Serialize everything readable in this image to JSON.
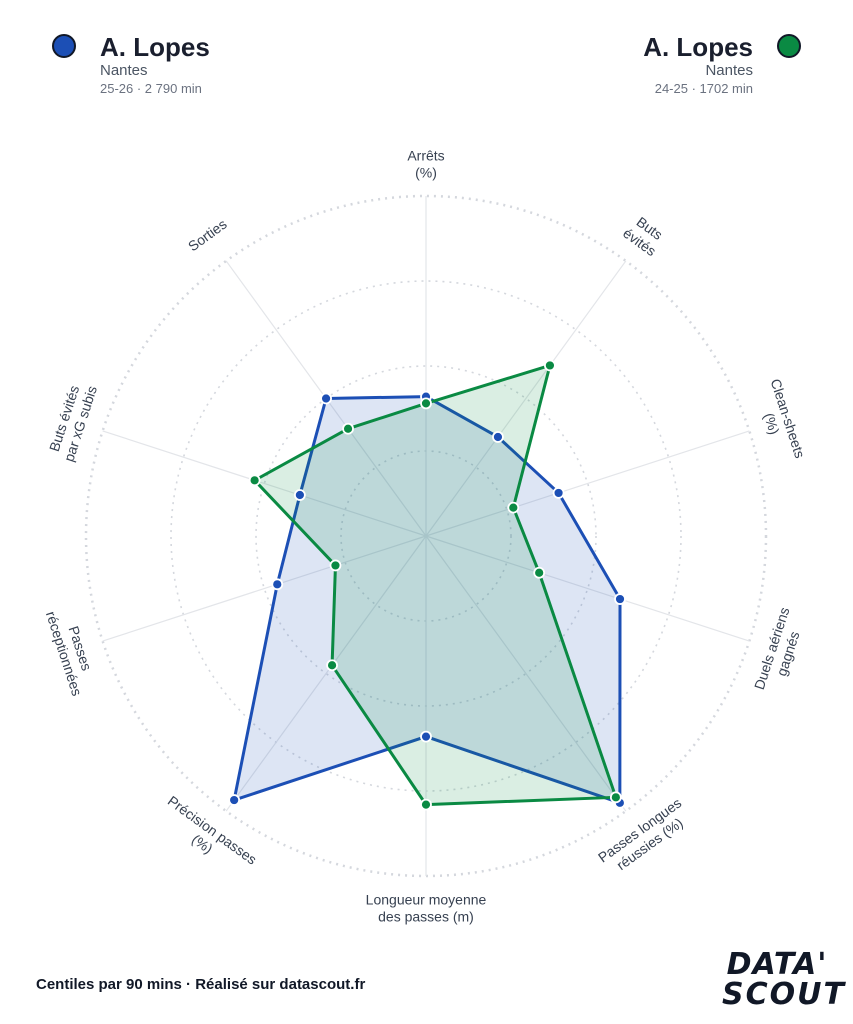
{
  "players": [
    {
      "name": "A. Lopes",
      "club": "Nantes",
      "season_minutes": "25-26 · 2 790 min",
      "color": "#1c4fb5"
    },
    {
      "name": "A. Lopes",
      "club": "Nantes",
      "season_minutes": "24-25 · 1702 min",
      "color": "#0a8a43"
    }
  ],
  "footer": "Centiles par 90 mins · Réalisé sur datascout.fr",
  "logo": {
    "line1": "DATA'",
    "line2": "SCOUT"
  },
  "chart_data": {
    "type": "radar",
    "axes": [
      [
        "Arrêts",
        "(%)"
      ],
      [
        "Buts",
        "évités"
      ],
      [
        "Clean-sheets",
        "(%)"
      ],
      [
        "Duels aériens",
        "gagnés"
      ],
      [
        "Passes longues",
        "réussies (%)"
      ],
      [
        "Longueur moyenne",
        "des passes (m)"
      ],
      [
        "Précision passes",
        "(%)"
      ],
      [
        "Passes",
        "réceptionnées"
      ],
      [
        "Buts évités",
        "par xG subis"
      ],
      [
        "Sorties"
      ]
    ],
    "range": [
      0,
      100
    ],
    "grid_levels": [
      25,
      50,
      75,
      100
    ],
    "series": [
      {
        "name": "A. Lopes",
        "values": [
          41,
          36,
          41,
          60,
          97,
          59,
          96,
          46,
          39,
          50
        ]
      },
      {
        "name": "A. Lopes",
        "values": [
          39,
          62,
          27,
          35,
          95,
          79,
          47,
          28,
          53,
          39
        ]
      }
    ]
  }
}
